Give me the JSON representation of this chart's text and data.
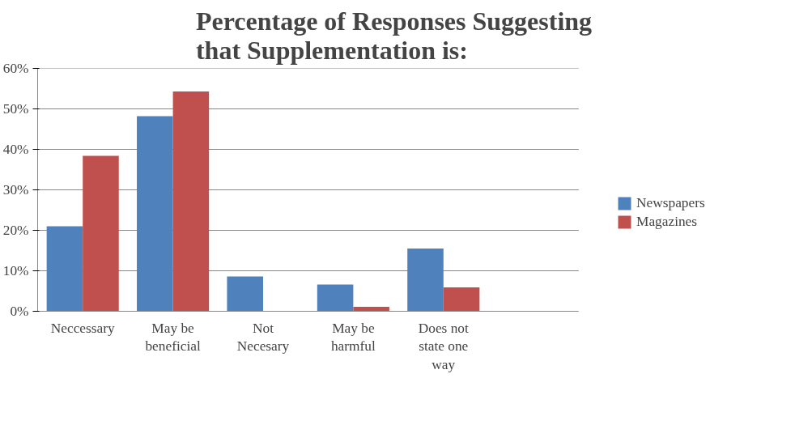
{
  "chart_data": {
    "type": "bar",
    "title": "Percentage of Responses Suggesting that Supplementation is:",
    "categories": [
      "Neccessary",
      "May be beneficial",
      "Not Necesary",
      "May be harmful",
      "Does not state one way",
      null
    ],
    "series": [
      {
        "name": "Newspapers",
        "color": "#4f81bd",
        "values": [
          21,
          48.2,
          8.6,
          6.6,
          15.5,
          null
        ]
      },
      {
        "name": "Magazines",
        "color": "#c0504d",
        "values": [
          38.4,
          54.3,
          null,
          1.1,
          5.9,
          null
        ]
      }
    ],
    "ylim": [
      0,
      60
    ],
    "yticks": [
      {
        "value": 0,
        "label": "0%"
      },
      {
        "value": 10,
        "label": "10%"
      },
      {
        "value": 20,
        "label": "20%"
      },
      {
        "value": 30,
        "label": "30%"
      },
      {
        "value": 40,
        "label": "40%"
      },
      {
        "value": 50,
        "label": "50%"
      },
      {
        "value": 60,
        "label": "60%"
      }
    ],
    "grid": "y",
    "legend": "right"
  }
}
